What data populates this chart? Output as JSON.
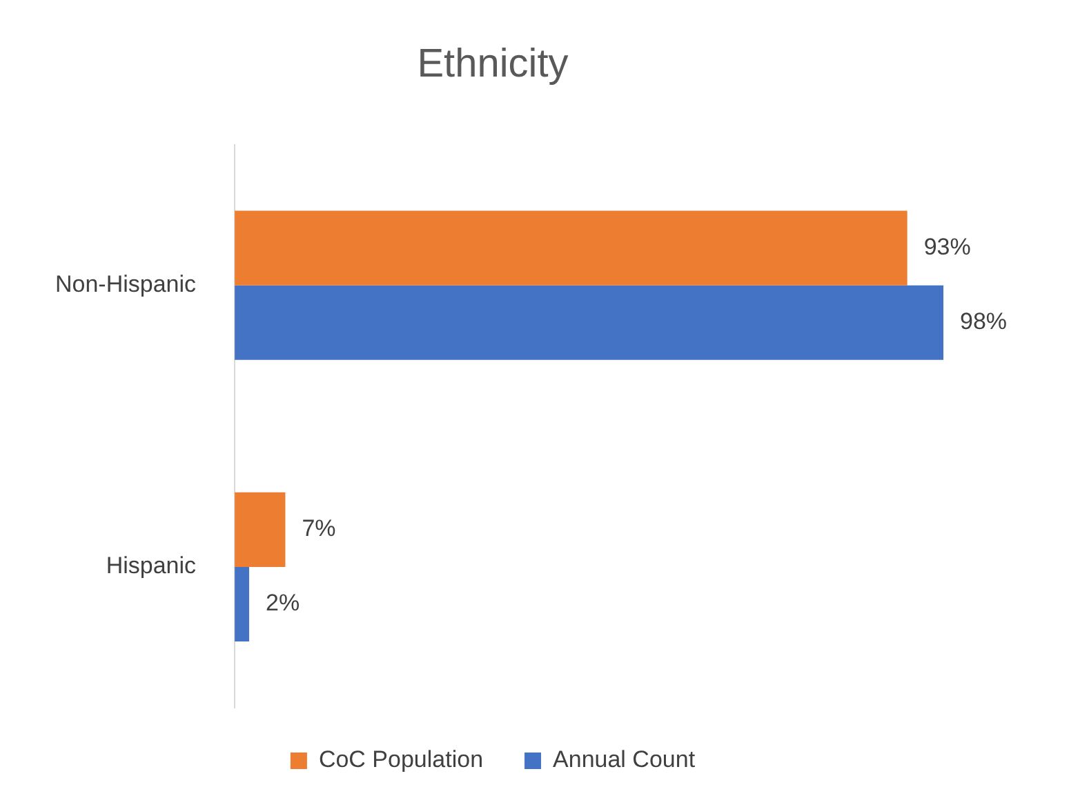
{
  "chart_data": {
    "type": "bar",
    "orientation": "horizontal",
    "title": "Ethnicity",
    "categories": [
      "Non-Hispanic",
      "Hispanic"
    ],
    "series": [
      {
        "name": "CoC Population",
        "color": "#ed7d31",
        "values": [
          93,
          7
        ],
        "value_labels": [
          "93%",
          "7%"
        ]
      },
      {
        "name": "Annual Count",
        "color": "#4472c4",
        "values": [
          98,
          2
        ],
        "value_labels": [
          "98%",
          "2%"
        ]
      }
    ],
    "legend": "bottom",
    "grid": false,
    "tick_labels": "y"
  }
}
